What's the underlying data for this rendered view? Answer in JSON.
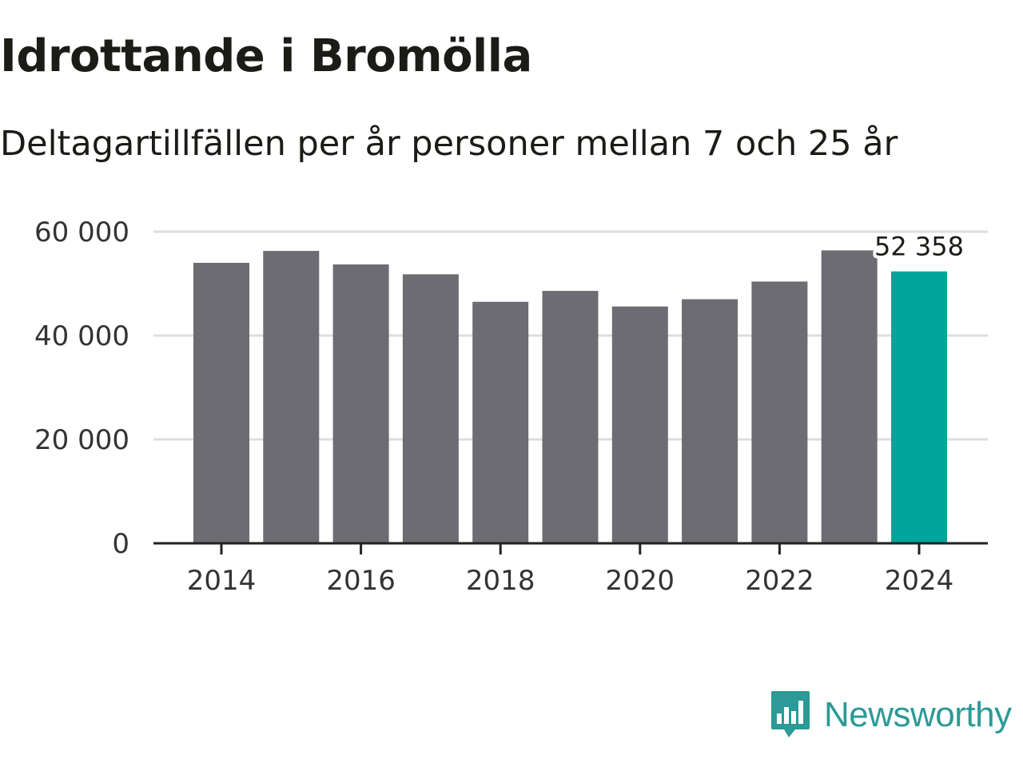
{
  "chart_data": {
    "type": "bar",
    "title": "Idrottande i Bromölla",
    "subtitle": "Deltagartillfällen per år personer mellan 7 och 25 år",
    "categories": [
      "2014",
      "2015",
      "2016",
      "2017",
      "2018",
      "2019",
      "2020",
      "2021",
      "2022",
      "2023",
      "2024"
    ],
    "values": [
      54000,
      56300,
      53700,
      51800,
      46500,
      48600,
      45600,
      47000,
      50400,
      56400,
      52358
    ],
    "highlight_index": 10,
    "highlight_label": "52 358",
    "ylim": [
      0,
      60000
    ],
    "yticks": [
      0,
      20000,
      40000,
      60000
    ],
    "ytick_labels": [
      "0",
      "20 000",
      "40 000",
      "60 000"
    ],
    "xtick_labels": [
      "2014",
      "2016",
      "2018",
      "2020",
      "2022",
      "2024"
    ],
    "xtick_indices": [
      0,
      2,
      4,
      6,
      8,
      10
    ],
    "xlabel": "",
    "ylabel": "",
    "grid": true,
    "colors": {
      "bar": "#6d6c72",
      "highlight": "#00a59a",
      "grid": "#dddddd",
      "axis": "#222222"
    }
  },
  "brand": {
    "name": "Newsworthy",
    "icon": "newsworthy-logo-icon",
    "color": "#2c9a96"
  }
}
